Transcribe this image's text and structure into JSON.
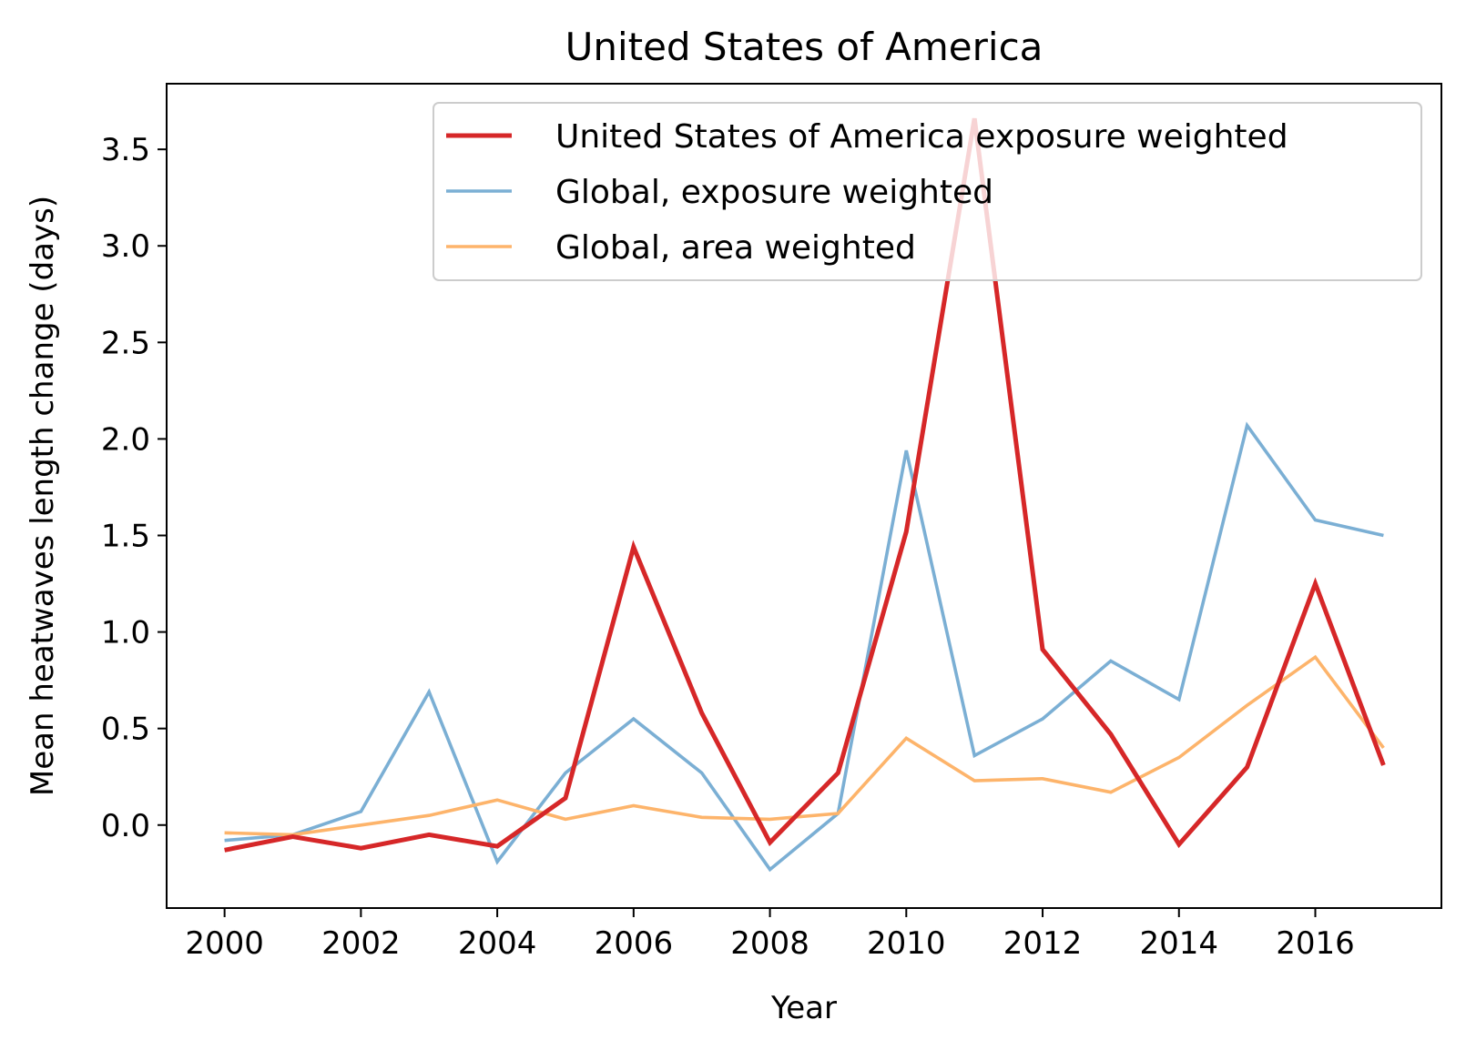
{
  "chart_data": {
    "type": "line",
    "title": "United States of America",
    "xlabel": "Year",
    "ylabel": "Mean heatwaves length change (days)",
    "x": [
      2000,
      2001,
      2002,
      2003,
      2004,
      2005,
      2006,
      2007,
      2008,
      2009,
      2010,
      2011,
      2012,
      2013,
      2014,
      2015,
      2016,
      2017
    ],
    "xlim": [
      1999.15,
      2017.85
    ],
    "ylim": [
      -0.43,
      3.84
    ],
    "xticks": [
      2000,
      2002,
      2004,
      2006,
      2008,
      2010,
      2012,
      2014,
      2016
    ],
    "yticks": [
      0.0,
      0.5,
      1.0,
      1.5,
      2.0,
      2.5,
      3.0,
      3.5
    ],
    "ytick_labels": [
      "0.0",
      "0.5",
      "1.0",
      "1.5",
      "2.0",
      "2.5",
      "3.0",
      "3.5"
    ],
    "grid": false,
    "legend_position": "top-right",
    "series": [
      {
        "name": "United States of America exposure weighted",
        "color": "#d62728",
        "values": [
          -0.13,
          -0.06,
          -0.12,
          -0.05,
          -0.11,
          0.14,
          1.44,
          0.58,
          -0.09,
          0.27,
          1.52,
          3.66,
          0.91,
          0.47,
          -0.1,
          0.3,
          1.25,
          0.31
        ]
      },
      {
        "name": "Global, exposure weighted",
        "color": "#7bafd4",
        "values": [
          -0.08,
          -0.05,
          0.07,
          0.69,
          -0.19,
          0.27,
          0.55,
          0.27,
          -0.23,
          0.06,
          1.94,
          0.36,
          0.55,
          0.85,
          0.65,
          2.07,
          1.58,
          1.5
        ]
      },
      {
        "name": "Global, area weighted",
        "color": "#fdb46b",
        "values": [
          -0.04,
          -0.05,
          0.0,
          0.05,
          0.13,
          0.03,
          0.1,
          0.04,
          0.03,
          0.06,
          0.45,
          0.23,
          0.24,
          0.17,
          0.35,
          0.62,
          0.87,
          0.4
        ]
      }
    ]
  }
}
